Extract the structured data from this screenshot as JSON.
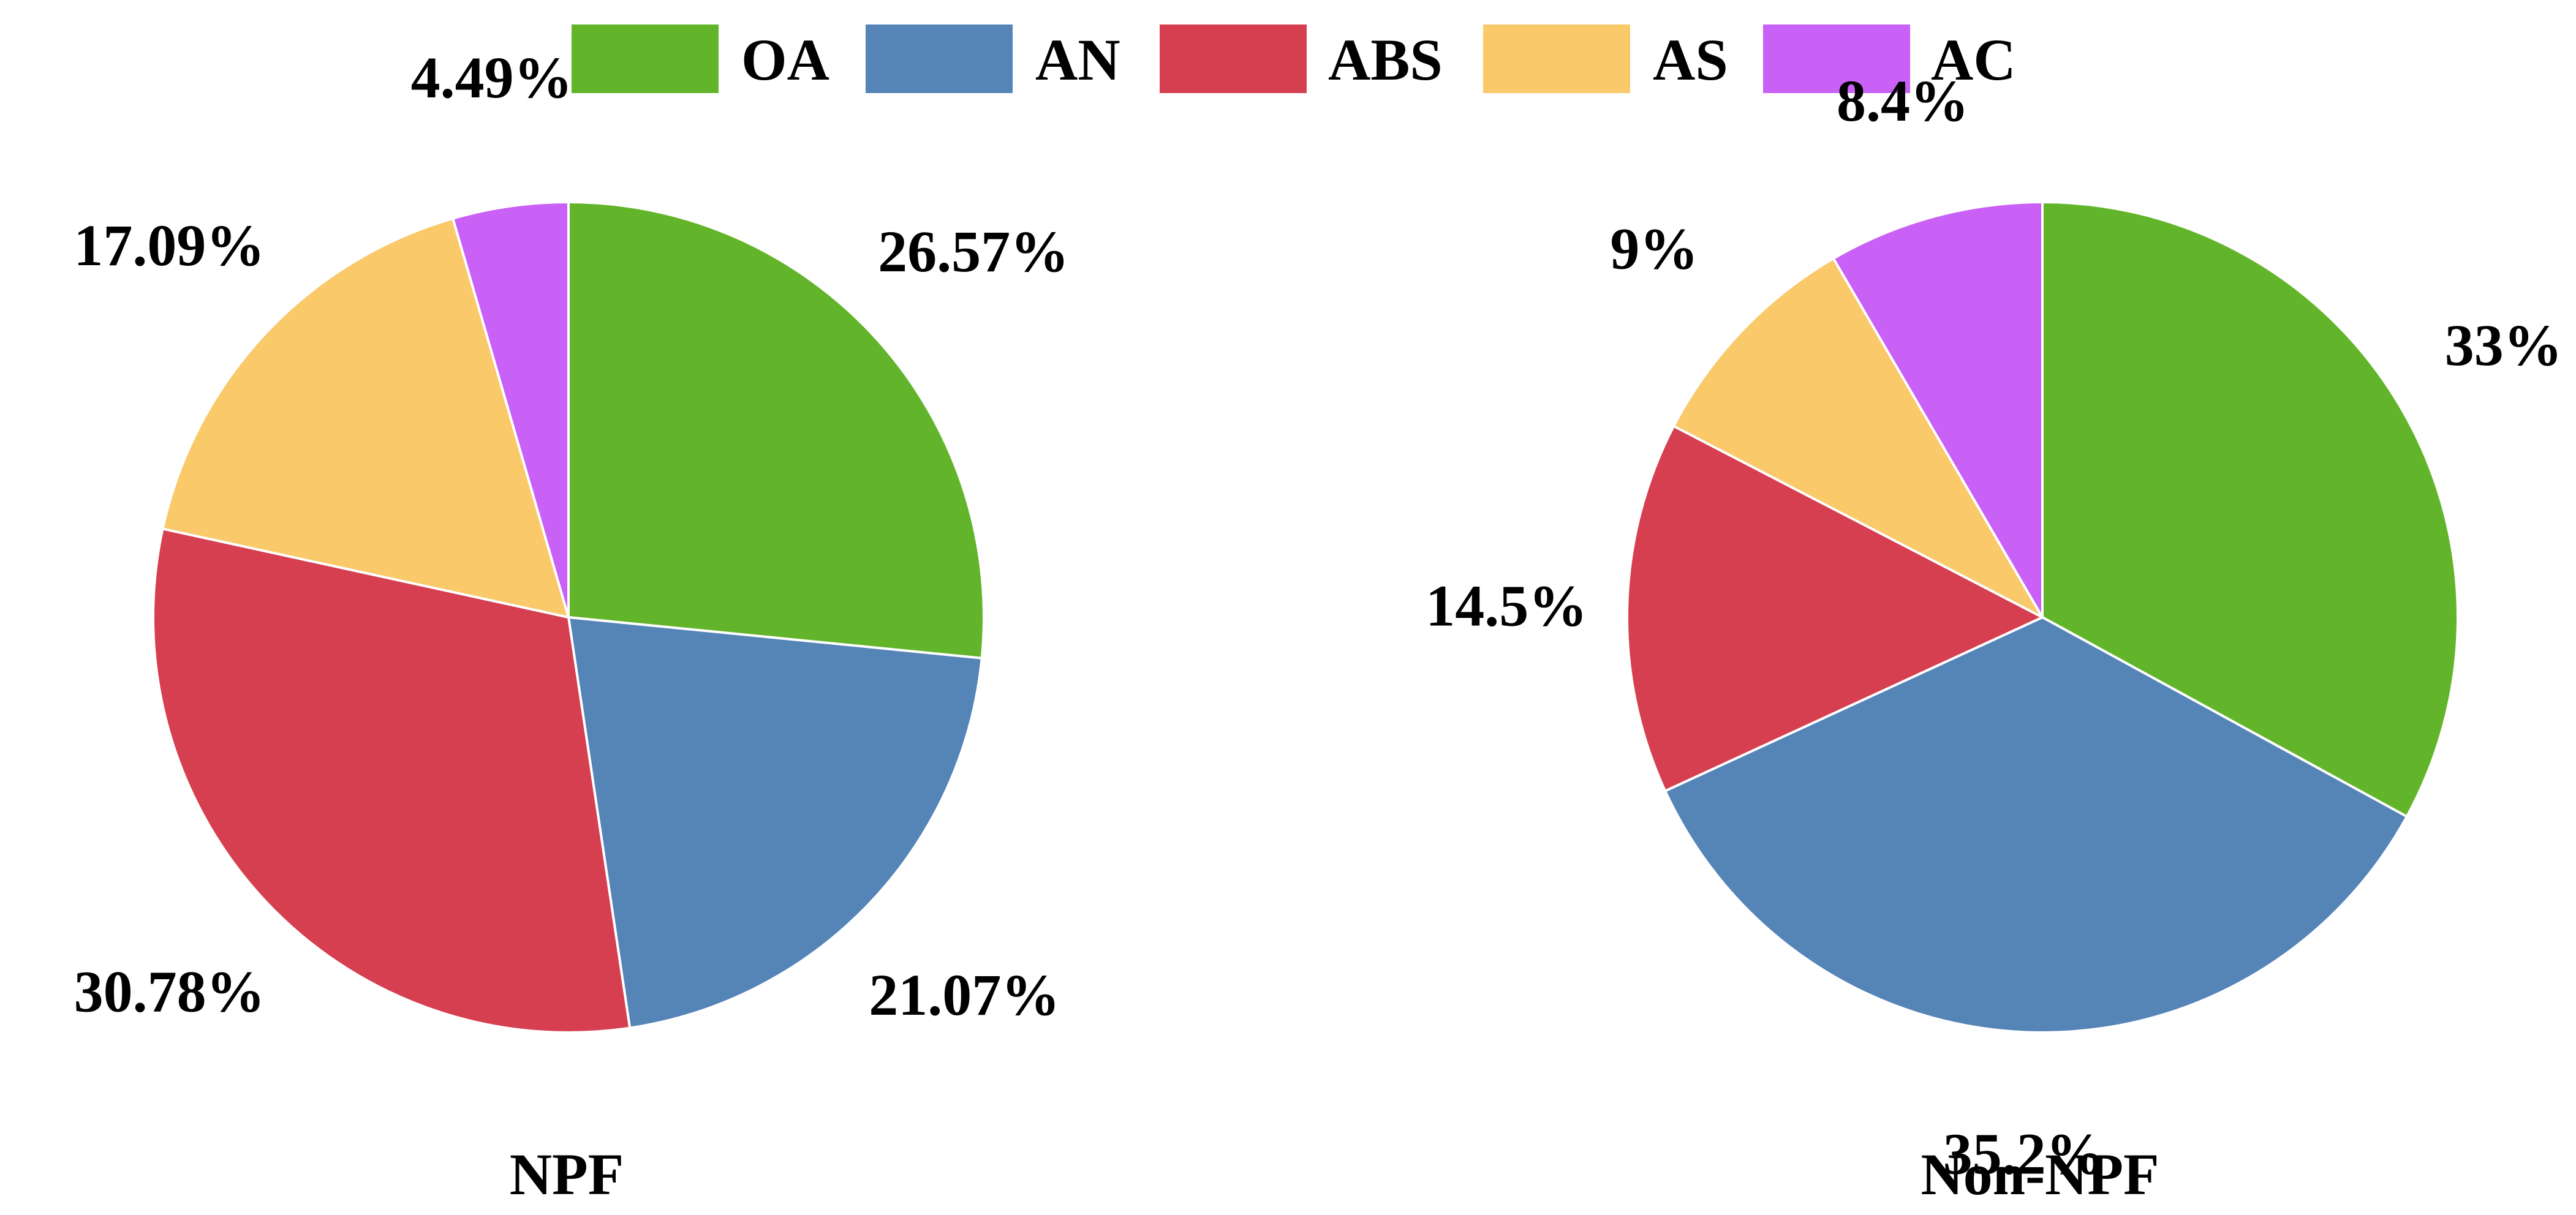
{
  "legend": {
    "position": "top-center",
    "items": [
      {
        "label": "OA",
        "color": "#62B52A"
      },
      {
        "label": "AN",
        "color": "#5584B7"
      },
      {
        "label": "ABS",
        "color": "#D63F4F"
      },
      {
        "label": "AS",
        "color": "#F9C96A"
      },
      {
        "label": "AC",
        "color": "#C961F6"
      }
    ]
  },
  "chart_data": [
    {
      "type": "pie",
      "title": "NPF",
      "categories": [
        "OA",
        "AN",
        "ABS",
        "AS",
        "AC"
      ],
      "values": [
        26.57,
        21.07,
        30.78,
        17.09,
        4.49
      ],
      "labels": [
        "26.57%",
        "21.07%",
        "30.78%",
        "17.09%",
        "4.49%"
      ],
      "start": "12 o'clock",
      "direction": "clockwise"
    },
    {
      "type": "pie",
      "title": "Non-NPF",
      "categories": [
        "OA",
        "AN",
        "ABS",
        "AS",
        "AC"
      ],
      "values": [
        33,
        35.2,
        14.5,
        9,
        8.4
      ],
      "labels": [
        "33%",
        "35.2%",
        "14.5%",
        "9%",
        "8.4%"
      ],
      "start": "12 o'clock",
      "direction": "clockwise"
    }
  ]
}
